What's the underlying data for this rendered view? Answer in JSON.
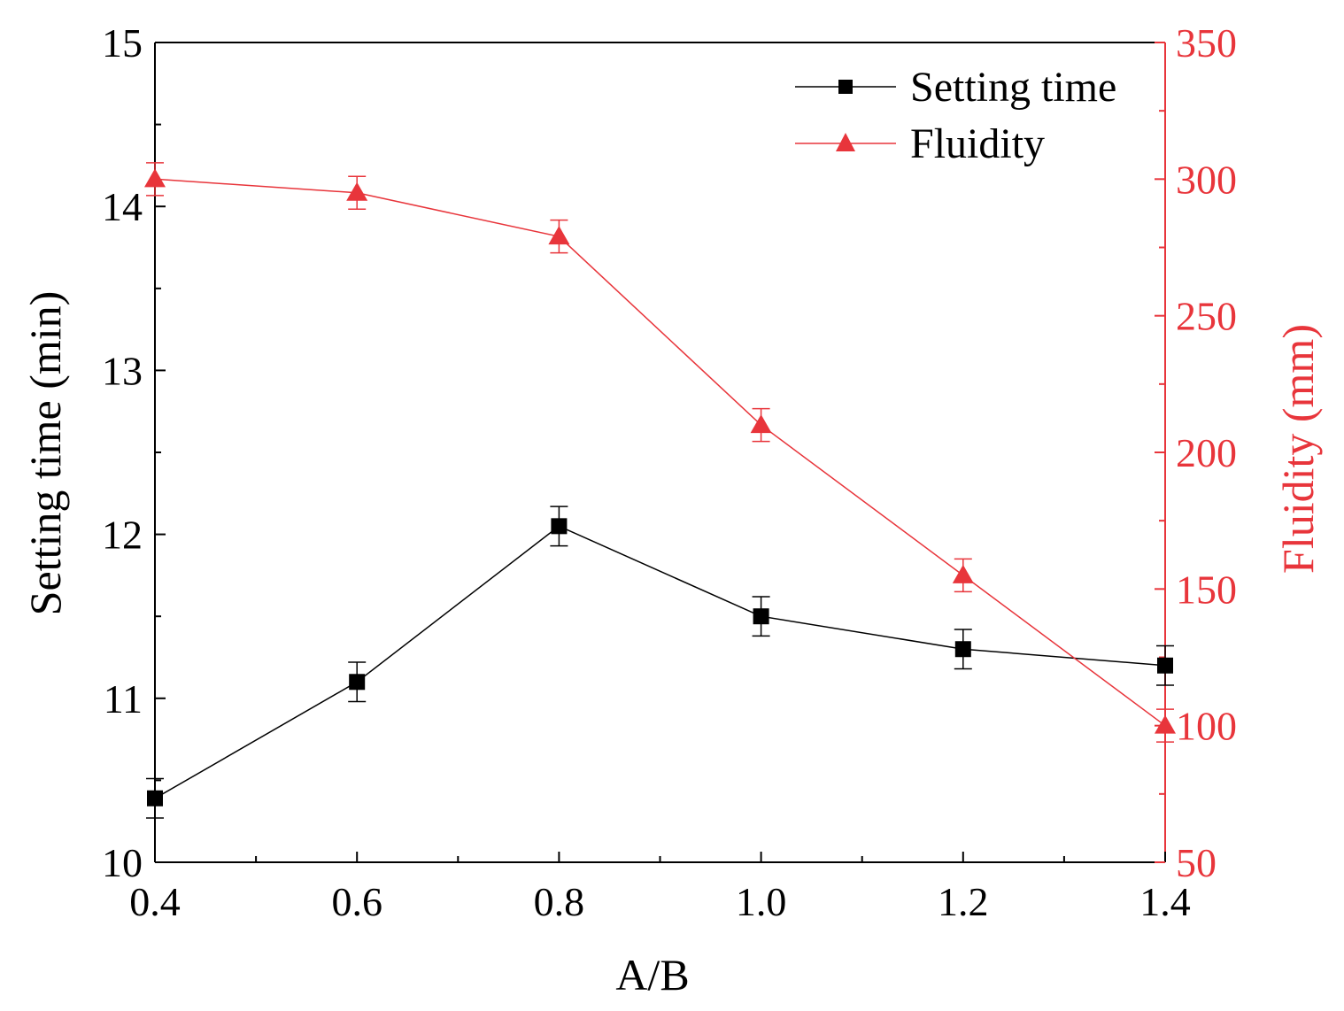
{
  "chart_data": {
    "type": "line",
    "title": "",
    "xlabel": "A/B",
    "ylabel_left": "Setting time (min)",
    "ylabel_right": "Fluidity (mm)",
    "x": [
      0.4,
      0.6,
      0.8,
      1.0,
      1.2,
      1.4
    ],
    "x_ticks": [
      "0.4",
      "0.6",
      "0.8",
      "1.0",
      "1.2",
      "1.4"
    ],
    "xlim": [
      0.4,
      1.4
    ],
    "ylim_left": [
      10,
      15
    ],
    "ylim_right": [
      50,
      350
    ],
    "y_ticks_left": [
      "10",
      "11",
      "12",
      "13",
      "14",
      "15"
    ],
    "y_ticks_right": [
      "50",
      "100",
      "150",
      "200",
      "250",
      "300",
      "350"
    ],
    "legend_position": "top-right",
    "colors": {
      "setting_time": "#000000",
      "fluidity": "#e8353b"
    },
    "series": [
      {
        "name": "Setting time",
        "axis": "left",
        "marker": "square",
        "values": [
          10.39,
          11.1,
          12.05,
          11.5,
          11.3,
          11.2
        ],
        "errors": [
          0.12,
          0.12,
          0.12,
          0.12,
          0.12,
          0.12
        ]
      },
      {
        "name": "Fluidity",
        "axis": "right",
        "marker": "triangle",
        "values": [
          300,
          295,
          279,
          210,
          155,
          100
        ],
        "errors": [
          6,
          6,
          6,
          6,
          6,
          6
        ]
      }
    ]
  }
}
